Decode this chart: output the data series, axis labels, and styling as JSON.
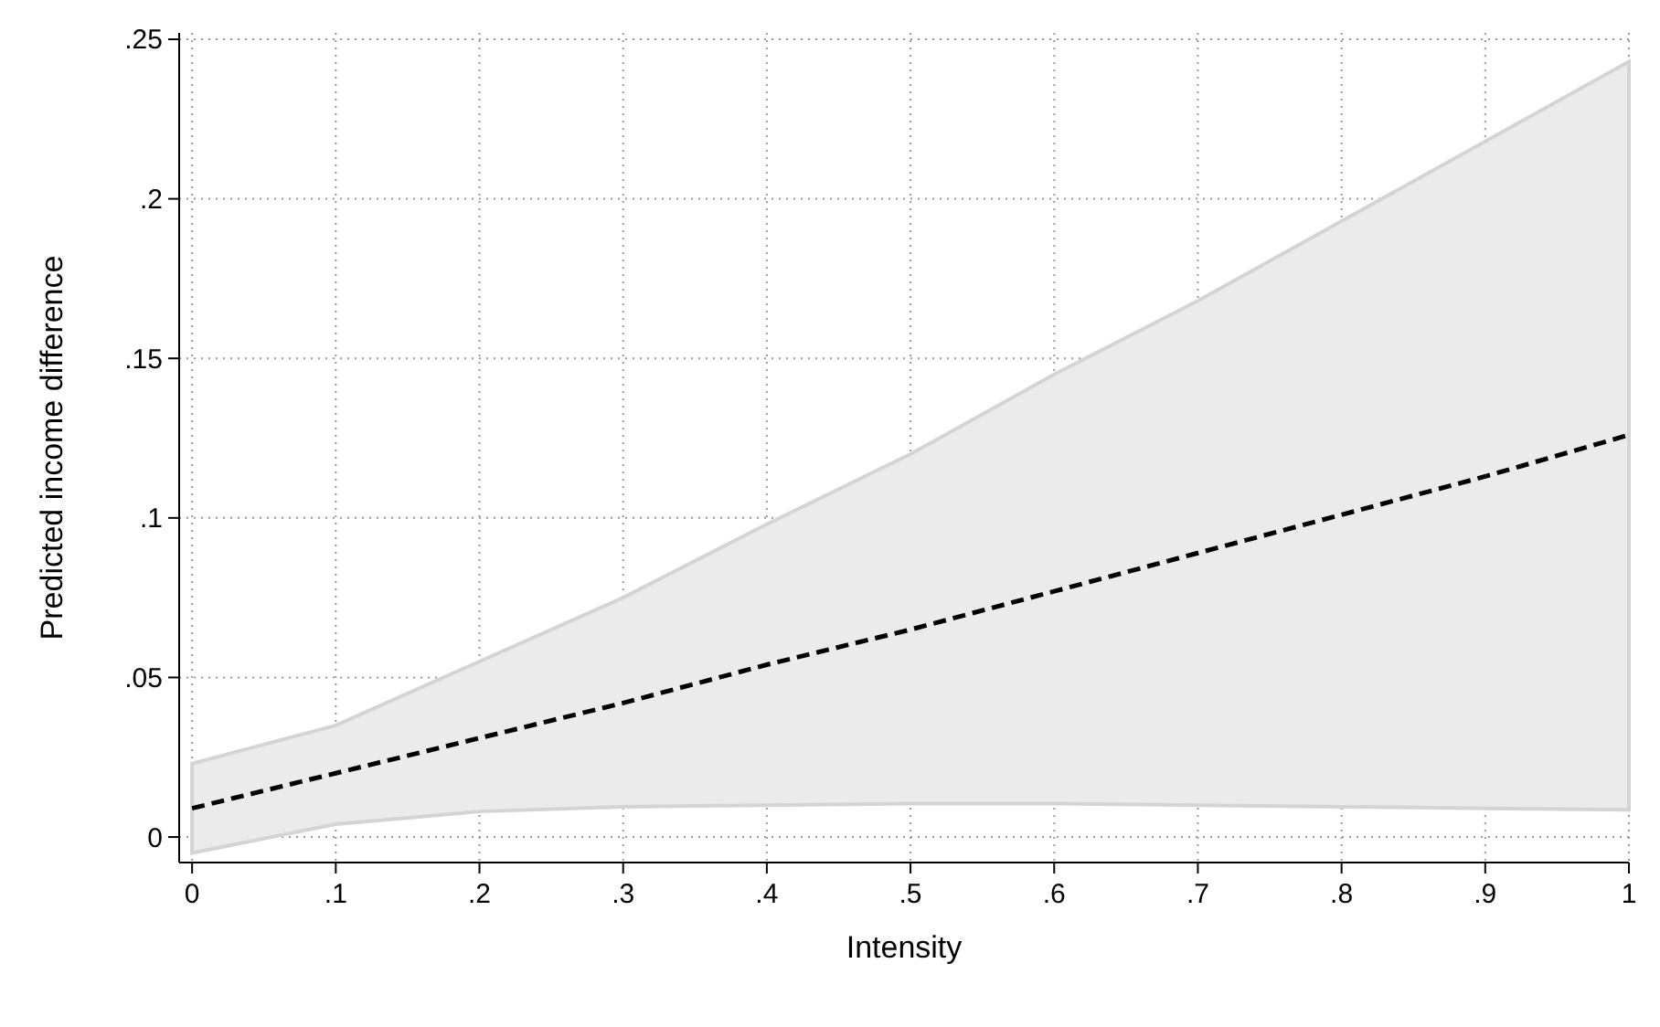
{
  "chart_data": {
    "type": "line",
    "xlabel": "Intensity",
    "ylabel": "Predicted income difference",
    "x": [
      0,
      0.1,
      0.2,
      0.3,
      0.4,
      0.5,
      0.6,
      0.7,
      0.8,
      0.9,
      1
    ],
    "series": [
      {
        "color": "#000000",
        "line_style": "dashed",
        "values": [
          0.009,
          0.02,
          0.031,
          0.042,
          0.054,
          0.065,
          0.077,
          0.089,
          0.101,
          0.113,
          0.126
        ],
        "lower": [
          -0.005,
          0.004,
          0.008,
          0.0095,
          0.01,
          0.0105,
          0.0105,
          0.01,
          0.0095,
          0.009,
          0.0085
        ],
        "upper": [
          0.023,
          0.035,
          0.055,
          0.075,
          0.098,
          0.12,
          0.145,
          0.168,
          0.193,
          0.218,
          0.243
        ]
      }
    ],
    "xlim": [
      -0.009,
      1
    ],
    "ylim": [
      -0.008,
      0.252
    ],
    "xticks": [
      0,
      {
        "value": 0.1,
        "label": ".1"
      },
      {
        "value": 0.2,
        "label": ".2"
      },
      {
        "value": 0.3,
        "label": ".3"
      },
      {
        "value": 0.4,
        "label": ".4"
      },
      {
        "value": 0.5,
        "label": ".5"
      },
      {
        "value": 0.6,
        "label": ".6"
      },
      {
        "value": 0.7,
        "label": ".7"
      },
      {
        "value": 0.8,
        "label": ".8"
      },
      {
        "value": 0.9,
        "label": ".9"
      },
      1
    ],
    "yticks": [
      0,
      {
        "value": 0.05,
        "label": ".05"
      },
      {
        "value": 0.1,
        "label": ".1"
      },
      {
        "value": 0.15,
        "label": ".15"
      },
      {
        "value": 0.2,
        "label": ".2"
      },
      {
        "value": 0.25,
        "label": ".25"
      }
    ],
    "grid": true
  }
}
